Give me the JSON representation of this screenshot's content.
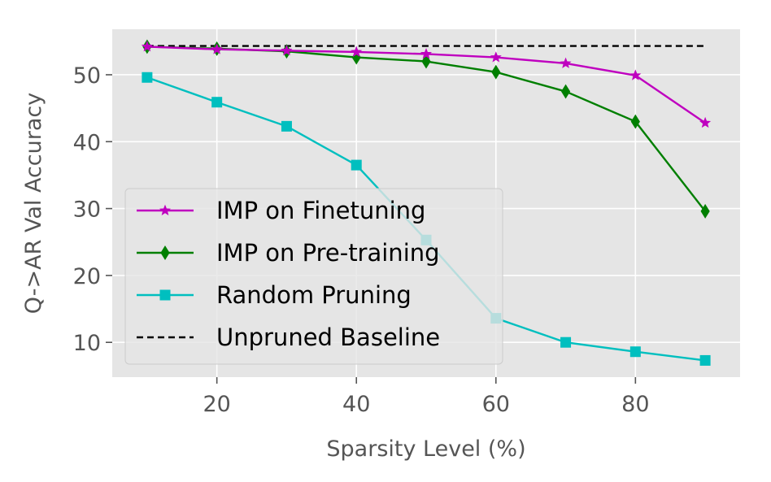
{
  "chart_data": {
    "type": "line",
    "title": "",
    "xlabel": "Sparsity Level (%)",
    "ylabel": "Q->AR Val Accuracy",
    "xlim": [
      5,
      95
    ],
    "ylim": [
      4.8,
      56.8
    ],
    "xticks": [
      20,
      40,
      60,
      80
    ],
    "yticks": [
      10,
      20,
      30,
      40,
      50
    ],
    "grid": true,
    "background": "#e5e5e5",
    "legend_position": "center-left",
    "x": [
      10,
      20,
      30,
      40,
      50,
      60,
      70,
      80,
      90
    ],
    "series": [
      {
        "name": "IMP on Finetuning",
        "color": "#bf00bf",
        "marker": "star",
        "linestyle": "solid",
        "values": [
          54.2,
          53.8,
          53.6,
          53.4,
          53.1,
          52.6,
          51.7,
          49.9,
          42.8
        ]
      },
      {
        "name": "IMP on Pre-training",
        "color": "#007f00",
        "marker": "thin-diamond",
        "linestyle": "solid",
        "values": [
          54.2,
          53.9,
          53.5,
          52.6,
          52.0,
          50.4,
          47.5,
          43.0,
          29.6
        ]
      },
      {
        "name": "Random Pruning",
        "color": "#00bfbf",
        "marker": "square",
        "linestyle": "solid",
        "values": [
          49.6,
          45.9,
          42.3,
          36.5,
          25.3,
          13.6,
          10.0,
          8.6,
          7.3
        ]
      },
      {
        "name": "Unpruned Baseline",
        "color": "#000000",
        "marker": "none",
        "linestyle": "dashed",
        "values": [
          54.3,
          54.3,
          54.3,
          54.3,
          54.3,
          54.3,
          54.3,
          54.3,
          54.3
        ]
      }
    ]
  }
}
